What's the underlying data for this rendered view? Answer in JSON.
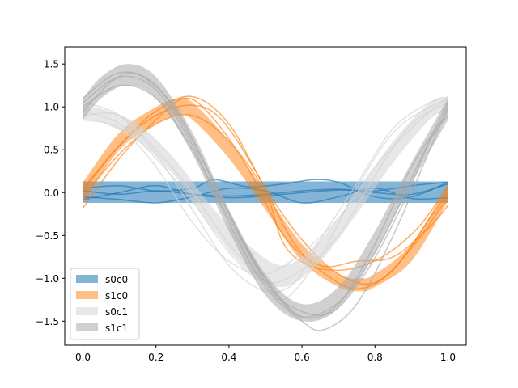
{
  "chart_data": {
    "type": "area",
    "title": "",
    "xlabel": "",
    "ylabel": "",
    "xlim": [
      -0.05,
      1.05
    ],
    "ylim": [
      -1.78,
      1.7
    ],
    "grid": false,
    "legend_position": "lower-left",
    "x_ticks": [
      0.0,
      0.2,
      0.4,
      0.6,
      0.8,
      1.0
    ],
    "x_tick_labels": [
      "0.0",
      "0.2",
      "0.4",
      "0.6",
      "0.8",
      "1.0"
    ],
    "y_ticks": [
      -1.5,
      -1.0,
      -0.5,
      0.0,
      0.5,
      1.0,
      1.5
    ],
    "y_tick_labels": [
      "−1.5",
      "−1.0",
      "−0.5",
      "0.0",
      "0.5",
      "1.0",
      "1.5"
    ],
    "series": [
      {
        "name": "s0c0",
        "color": "#1f77b4",
        "band_upper": {
          "x": [
            0,
            1
          ],
          "y": [
            0.13,
            0.13
          ]
        },
        "band_lower": {
          "x": [
            0,
            1
          ],
          "y": [
            -0.12,
            -0.12
          ]
        },
        "lines": [
          {
            "x": [
              0,
              0.1,
              0.2,
              0.3,
              0.36,
              0.45,
              0.55,
              0.63,
              0.7,
              0.8,
              0.9,
              1.0
            ],
            "y": [
              0.05,
              0.08,
              0.02,
              0.05,
              0.15,
              0.07,
              0.1,
              0.15,
              0.12,
              -0.05,
              -0.05,
              0.12
            ]
          },
          {
            "x": [
              0,
              0.1,
              0.2,
              0.3,
              0.4,
              0.5,
              0.6,
              0.7,
              0.8,
              0.9,
              1.0
            ],
            "y": [
              -0.05,
              -0.08,
              -0.12,
              -0.05,
              0.05,
              0.02,
              -0.12,
              -0.05,
              0.05,
              -0.07,
              -0.06
            ]
          },
          {
            "x": [
              0,
              0.1,
              0.2,
              0.3,
              0.4,
              0.5,
              0.6,
              0.7,
              0.8,
              0.9,
              1.0
            ],
            "y": [
              0.02,
              -0.02,
              0.02,
              -0.02,
              -0.04,
              -0.02,
              0.02,
              0.04,
              0.0,
              -0.02,
              0.1
            ]
          },
          {
            "x": [
              0,
              0.1,
              0.2,
              0.3,
              0.4,
              0.5,
              0.6,
              0.7,
              0.8,
              0.9,
              1.0
            ],
            "y": [
              -0.08,
              0.0,
              0.08,
              -0.02,
              -0.06,
              -0.04,
              0.0,
              0.03,
              0.02,
              0.08,
              0.12
            ]
          }
        ]
      },
      {
        "name": "s1c0",
        "color": "#ff7f0e",
        "band_upper": {
          "x": [
            0,
            0.1,
            0.2,
            0.26,
            0.3,
            0.4,
            0.5,
            0.6,
            0.7,
            0.76,
            0.8,
            0.9,
            1.0
          ],
          "y": [
            0.12,
            0.7,
            1.0,
            1.1,
            1.05,
            0.6,
            0.0,
            -0.6,
            -0.95,
            -1.0,
            -0.95,
            -0.6,
            0.1
          ]
        },
        "band_lower": {
          "x": [
            0,
            0.1,
            0.2,
            0.26,
            0.3,
            0.4,
            0.5,
            0.6,
            0.7,
            0.76,
            0.8,
            0.9,
            1.0
          ],
          "y": [
            -0.12,
            0.5,
            0.8,
            0.9,
            0.85,
            0.4,
            -0.2,
            -0.8,
            -1.1,
            -1.15,
            -1.1,
            -0.8,
            -0.1
          ]
        },
        "lines": [
          {
            "x": [
              0,
              0.1,
              0.2,
              0.28,
              0.35,
              0.45,
              0.55,
              0.65,
              0.75,
              0.85,
              0.95,
              1.0
            ],
            "y": [
              -0.18,
              0.4,
              0.85,
              1.1,
              0.9,
              0.3,
              -0.5,
              -0.85,
              -0.8,
              -0.75,
              -0.4,
              -0.15
            ]
          },
          {
            "x": [
              0,
              0.1,
              0.2,
              0.3,
              0.38,
              0.48,
              0.58,
              0.68,
              0.76,
              0.85,
              0.95,
              1.0
            ],
            "y": [
              0.02,
              0.55,
              0.9,
              1.02,
              0.85,
              0.2,
              -0.6,
              -1.0,
              -1.12,
              -0.9,
              -0.3,
              0.0
            ]
          },
          {
            "x": [
              0,
              0.1,
              0.2,
              0.3,
              0.4,
              0.5,
              0.55,
              0.62,
              0.72,
              0.82,
              0.92,
              1.0
            ],
            "y": [
              -0.05,
              0.45,
              0.8,
              0.9,
              0.6,
              0.0,
              -0.6,
              -0.85,
              -0.9,
              -0.75,
              -0.4,
              0.08
            ]
          },
          {
            "x": [
              0,
              0.1,
              0.2,
              0.3,
              0.4,
              0.5,
              0.6,
              0.7,
              0.8,
              0.9,
              1.0
            ],
            "y": [
              0.05,
              0.55,
              0.95,
              1.12,
              0.8,
              0.05,
              -0.55,
              -0.95,
              -1.05,
              -0.65,
              -0.05
            ]
          }
        ]
      },
      {
        "name": "s0c1",
        "color": "#d3d3d3",
        "band_upper": {
          "x": [
            0,
            0.05,
            0.15,
            0.25,
            0.35,
            0.45,
            0.55,
            0.65,
            0.75,
            0.85,
            0.95,
            1.0
          ],
          "y": [
            1.0,
            0.98,
            0.8,
            0.4,
            -0.15,
            -0.6,
            -0.85,
            -0.55,
            0.0,
            0.6,
            1.05,
            1.12
          ]
        },
        "band_lower": {
          "x": [
            0,
            0.05,
            0.15,
            0.25,
            0.35,
            0.45,
            0.55,
            0.65,
            0.75,
            0.85,
            0.95,
            1.0
          ],
          "y": [
            0.85,
            0.82,
            0.6,
            0.2,
            -0.4,
            -0.9,
            -1.1,
            -0.8,
            -0.25,
            0.35,
            0.85,
            0.95
          ]
        },
        "lines": [
          {
            "x": [
              0,
              0.1,
              0.2,
              0.3,
              0.4,
              0.5,
              0.6,
              0.7,
              0.8,
              0.9,
              1.0
            ],
            "y": [
              0.95,
              0.8,
              0.4,
              -0.1,
              -0.7,
              -1.05,
              -0.9,
              -0.5,
              0.2,
              0.8,
              1.05
            ]
          },
          {
            "x": [
              0,
              0.1,
              0.2,
              0.3,
              0.4,
              0.5,
              0.58,
              0.65,
              0.75,
              0.85,
              0.95,
              1.0
            ],
            "y": [
              1.05,
              0.9,
              0.45,
              -0.2,
              -0.85,
              -1.15,
              -1.05,
              -0.55,
              0.1,
              0.75,
              1.05,
              1.1
            ]
          },
          {
            "x": [
              0,
              0.1,
              0.2,
              0.3,
              0.4,
              0.5,
              0.6,
              0.7,
              0.8,
              0.9,
              1.0
            ],
            "y": [
              0.85,
              0.75,
              0.3,
              -0.35,
              -0.8,
              -0.95,
              -0.7,
              -0.3,
              0.3,
              0.75,
              1.12
            ]
          },
          {
            "x": [
              0,
              0.1,
              0.2,
              0.3,
              0.4,
              0.5,
              0.55,
              0.65,
              0.75,
              0.85,
              0.95,
              1.0
            ],
            "y": [
              0.9,
              0.9,
              0.5,
              0.0,
              -0.6,
              -1.05,
              -1.25,
              -0.75,
              0.05,
              0.7,
              1.0,
              1.08
            ]
          }
        ]
      },
      {
        "name": "s1c1",
        "color": "#a9a9a9",
        "band_upper": {
          "x": [
            0,
            0.05,
            0.12,
            0.2,
            0.3,
            0.4,
            0.5,
            0.6,
            0.7,
            0.8,
            0.9,
            1.0
          ],
          "y": [
            1.1,
            1.35,
            1.5,
            1.35,
            0.7,
            -0.2,
            -0.95,
            -1.3,
            -1.1,
            -0.45,
            0.35,
            1.1
          ]
        },
        "band_lower": {
          "x": [
            0,
            0.05,
            0.12,
            0.2,
            0.3,
            0.4,
            0.5,
            0.6,
            0.7,
            0.8,
            0.9,
            1.0
          ],
          "y": [
            0.85,
            1.1,
            1.25,
            1.1,
            0.45,
            -0.45,
            -1.2,
            -1.5,
            -1.35,
            -0.7,
            0.1,
            0.85
          ]
        },
        "lines": [
          {
            "x": [
              0,
              0.1,
              0.2,
              0.3,
              0.4,
              0.5,
              0.6,
              0.66,
              0.75,
              0.85,
              0.95,
              1.0
            ],
            "y": [
              1.05,
              1.35,
              1.2,
              0.55,
              -0.35,
              -1.1,
              -1.5,
              -1.6,
              -1.3,
              -0.5,
              0.5,
              1.0
            ]
          },
          {
            "x": [
              0,
              0.08,
              0.15,
              0.25,
              0.35,
              0.45,
              0.55,
              0.62,
              0.72,
              0.82,
              0.92,
              1.0
            ],
            "y": [
              0.95,
              1.3,
              1.38,
              1.0,
              0.2,
              -0.65,
              -1.3,
              -1.45,
              -1.2,
              -0.55,
              0.35,
              1.05
            ]
          },
          {
            "x": [
              0,
              0.1,
              0.2,
              0.3,
              0.4,
              0.5,
              0.6,
              0.7,
              0.8,
              0.9,
              1.0
            ],
            "y": [
              1.0,
              1.25,
              1.1,
              0.5,
              -0.3,
              -1.0,
              -1.45,
              -1.3,
              -0.6,
              0.3,
              0.95
            ]
          },
          {
            "x": [
              0,
              0.1,
              0.2,
              0.3,
              0.4,
              0.5,
              0.58,
              0.68,
              0.78,
              0.88,
              0.95,
              1.0
            ],
            "y": [
              1.1,
              1.4,
              1.25,
              0.6,
              -0.25,
              -1.05,
              -1.35,
              -1.4,
              -0.9,
              -0.1,
              0.6,
              0.9
            ]
          }
        ]
      }
    ]
  }
}
